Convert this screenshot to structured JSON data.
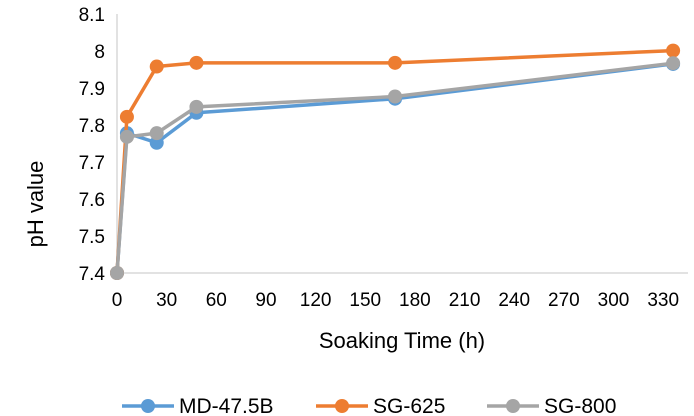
{
  "chart_data": {
    "type": "line",
    "title": "",
    "xlabel": "Soaking Time (h)",
    "ylabel": "pH value",
    "xlim": [
      0,
      345
    ],
    "ylim": [
      7.4,
      8.1
    ],
    "x_ticks": [
      0,
      30,
      60,
      90,
      120,
      150,
      180,
      210,
      240,
      270,
      300,
      330
    ],
    "y_ticks": [
      7.4,
      7.5,
      7.6,
      7.7,
      7.8,
      7.9,
      8,
      8.1
    ],
    "y_tick_labels": [
      "7.4",
      "7.5",
      "7.6",
      "7.7",
      "7.8",
      "7.9",
      "8",
      "8.1"
    ],
    "grid": false,
    "legend_position": "bottom",
    "series": [
      {
        "name": "MD-47.5B",
        "color": "#5B9BD5",
        "x": [
          0,
          6,
          24,
          48,
          168,
          336
        ],
        "y": [
          7.4,
          7.778,
          7.752,
          7.833,
          7.871,
          7.965
        ]
      },
      {
        "name": "SG-625",
        "color": "#ED7D31",
        "x": [
          0,
          6,
          24,
          48,
          168,
          336
        ],
        "y": [
          7.4,
          7.822,
          7.958,
          7.968,
          7.968,
          8.001
        ]
      },
      {
        "name": "SG-800",
        "color": "#A5A5A5",
        "x": [
          0,
          6,
          24,
          48,
          168,
          336
        ],
        "y": [
          7.4,
          7.768,
          7.778,
          7.849,
          7.877,
          7.967
        ]
      }
    ]
  }
}
